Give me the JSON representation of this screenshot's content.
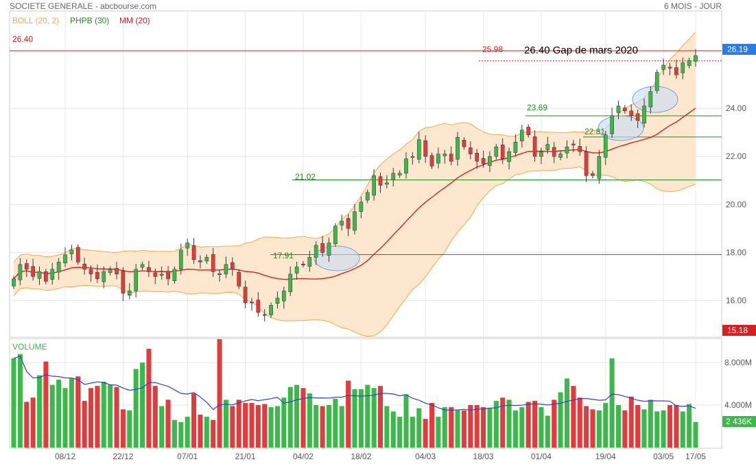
{
  "header": {
    "title": "SOCIETE GENERALE - abcbourse.com",
    "period": "6 MOIS - JOUR"
  },
  "legend": [
    {
      "label": "BOLL (20, 2)",
      "color": "#f3a848"
    },
    {
      "label": "PHPB (30)",
      "color": "#1f8a1f"
    },
    {
      "label": "MM (20)",
      "color": "#d42020"
    }
  ],
  "volume_label": "VOLUME",
  "annotation": "26.40 Gap de mars 2020",
  "colors": {
    "up": "#3cb84a",
    "down": "#e03c3c",
    "boll": "#f3a848",
    "boll_fill": "#fde8cf",
    "mm": "#d42020",
    "hline": "#1f8a1f",
    "gap": "#d42020",
    "vol_ma": "#2c3fd6",
    "badge": "#2c7be5"
  },
  "chart_data": [
    {
      "type": "candlestick",
      "title": "SOCIETE GENERALE",
      "ylim": [
        14.5,
        28.0
      ],
      "y_ticks": [
        "16.00",
        "18.00",
        "20.00",
        "22.00",
        "24.00"
      ],
      "x_ticks": [
        "08/12",
        "22/12",
        "07/01",
        "21/01",
        "04/02",
        "18/02",
        "04/03",
        "18/03",
        "01/04",
        "19/04",
        "03/05",
        "17/05"
      ],
      "close": [
        16.9,
        17.5,
        17.3,
        17.0,
        17.2,
        16.8,
        17.3,
        17.6,
        17.9,
        18.1,
        17.6,
        17.3,
        17.1,
        16.9,
        17.2,
        17.3,
        17.1,
        16.3,
        16.4,
        17.3,
        17.5,
        17.2,
        17.0,
        17.1,
        16.9,
        17.3,
        18.1,
        18.4,
        17.7,
        17.6,
        17.8,
        17.2,
        17.1,
        17.5,
        17.3,
        16.6,
        15.9,
        15.9,
        15.5,
        15.4,
        15.8,
        16.1,
        16.4,
        17.1,
        17.4,
        17.5,
        17.8,
        18.3,
        18.0,
        18.4,
        19.1,
        19.3,
        19.0,
        19.7,
        20.1,
        20.5,
        21.2,
        20.8,
        20.9,
        21.3,
        21.3,
        21.9,
        22.0,
        22.7,
        22.0,
        21.6,
        22.1,
        22.1,
        21.8,
        22.8,
        22.4,
        22.1,
        21.8,
        21.7,
        22.0,
        22.4,
        21.9,
        22.2,
        22.6,
        23.1,
        22.9,
        22.0,
        22.2,
        22.5,
        22.0,
        22.1,
        22.4,
        22.5,
        22.2,
        21.2,
        21.2,
        22.0,
        22.9,
        23.7,
        24.1,
        23.9,
        23.7,
        23.5,
        24.1,
        24.7,
        25.5,
        25.8,
        25.7,
        25.4,
        25.9,
        26.0,
        26.2
      ],
      "volume_series_name": "VOLUME",
      "volume_ylim": [
        0,
        10000
      ],
      "volume_ticks": [
        "4.000M",
        "8.000M"
      ],
      "volume": [
        8400,
        8800,
        4300,
        4700,
        6800,
        8100,
        5900,
        6400,
        5600,
        6500,
        6700,
        4400,
        5600,
        5800,
        6200,
        5900,
        5700,
        3600,
        3500,
        7400,
        8000,
        9300,
        5800,
        3900,
        4500,
        2600,
        2400,
        2900,
        5100,
        3100,
        2900,
        2600,
        10200,
        4500,
        3900,
        4500,
        4200,
        4200,
        4000,
        4100,
        3800,
        3900,
        4700,
        5700,
        5900,
        5600,
        5100,
        4000,
        3900,
        4000,
        4600,
        3900,
        6300,
        5500,
        5500,
        5900,
        5600,
        5800,
        3900,
        3400,
        2900,
        5000,
        2900,
        3700,
        2700,
        4200,
        2900,
        3800,
        3800,
        3500,
        3500,
        4000,
        4000,
        3800,
        3700,
        4400,
        4700,
        4500,
        3500,
        3800,
        4300,
        4400,
        3800,
        3000,
        4500,
        5200,
        6500,
        5800,
        4700,
        3900,
        3600,
        3500,
        4200,
        8400,
        4000,
        3500,
        4800,
        4000,
        3600,
        4500,
        3400,
        3500,
        4000,
        4000,
        3400,
        4100,
        2400
      ]
    }
  ],
  "y_axis_labels": [
    "26.40",
    "26.19",
    "24.00",
    "22.00",
    "20.00",
    "18.00",
    "16.00",
    "15.18"
  ],
  "level_labels": {
    "gap_left": "26.40",
    "gap_right": "26.19",
    "dotted": "25.98",
    "l1": "23.69",
    "l2": "22.81",
    "l3": "21.02",
    "l4": "17.91",
    "bottom": "15.18",
    "vol_last": "2 436K"
  }
}
